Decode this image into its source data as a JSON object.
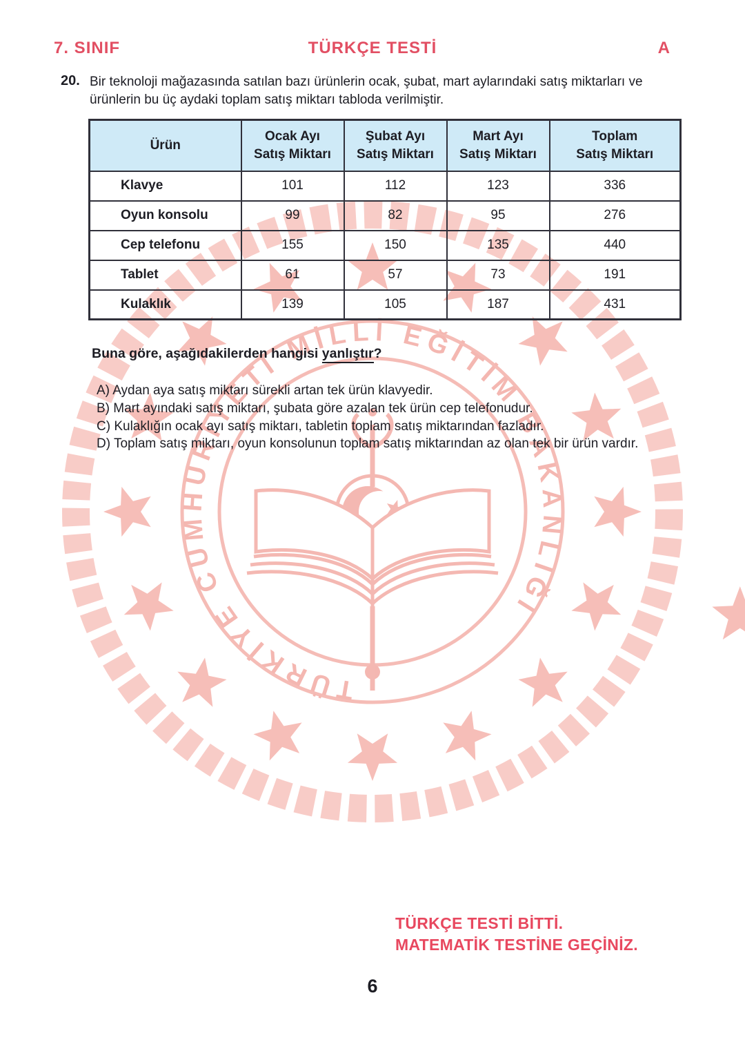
{
  "header": {
    "grade": "7. SINIF",
    "title": "TÜRKÇE TESTİ",
    "booklet": "A"
  },
  "question": {
    "number": "20.",
    "intro": "Bir teknoloji mağazasında satılan bazı ürünlerin ocak, şubat, mart aylarındaki satış miktarları ve ürünlerin bu üç aydaki toplam satış miktarı tabloda verilmiştir.",
    "stem_prefix": "Buna göre, aşağıdakilerden hangisi ",
    "stem_underlined": "yanlıştır",
    "stem_suffix": "?"
  },
  "table": {
    "columns": [
      {
        "line1": "Ürün",
        "line2": ""
      },
      {
        "line1": "Ocak Ayı",
        "line2": "Satış Miktarı"
      },
      {
        "line1": "Şubat Ayı",
        "line2": "Satış Miktarı"
      },
      {
        "line1": "Mart Ayı",
        "line2": "Satış Miktarı"
      },
      {
        "line1": "Toplam",
        "line2": "Satış Miktarı"
      }
    ],
    "rows": [
      [
        "Klavye",
        "101",
        "112",
        "123",
        "336"
      ],
      [
        "Oyun konsolu",
        "99",
        "82",
        "95",
        "276"
      ],
      [
        "Cep telefonu",
        "155",
        "150",
        "135",
        "440"
      ],
      [
        "Tablet",
        "61",
        "57",
        "73",
        "191"
      ],
      [
        "Kulaklık",
        "139",
        "105",
        "187",
        "431"
      ]
    ]
  },
  "options": [
    "A) Aydan aya satış miktarı sürekli artan tek ürün klavyedir.",
    "B) Mart ayındaki satış miktarı, şubata göre azalan tek ürün cep telefonudur.",
    "C) Kulaklığın ocak ayı satış miktarı, tabletin toplam satış miktarından fazladır.",
    "D) Toplam satış miktarı, oyun konsolunun toplam satış miktarından az olan tek bir ürün vardır."
  ],
  "watermark": {
    "icon": "meb-ministry-emblem",
    "circle_text": "TÜRKİYE CUMHURİYETİ  MİLLİ EĞİTİM BAKANLIĞI"
  },
  "footer": {
    "line1": "TÜRKÇE TESTİ BİTTİ.",
    "line2": "MATEMATİK TESTİNE GEÇİNİZ.",
    "page_number": "6"
  },
  "colors": {
    "accent_red": "#e24f63",
    "footer_red": "#e8485f",
    "table_header_blue": "#cfeaf7",
    "border_dark": "#30303a",
    "watermark_pink": "#f5bcb6"
  }
}
